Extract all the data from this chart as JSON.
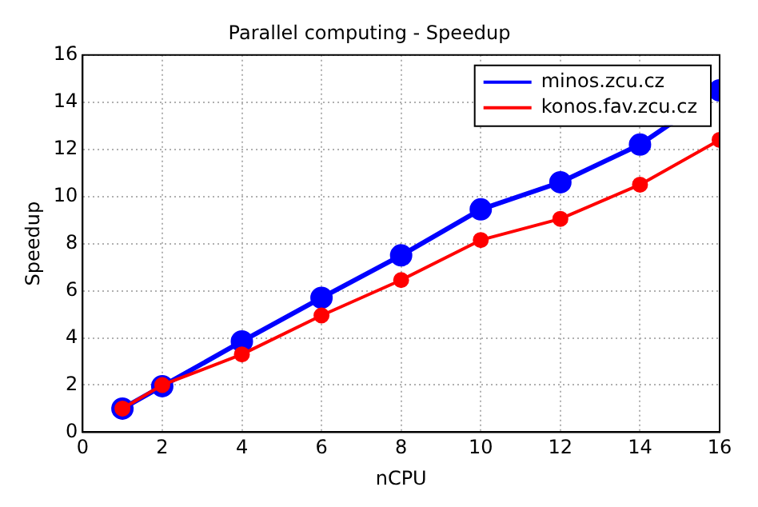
{
  "chart_data": {
    "type": "line",
    "title": "Parallel computing - Speedup",
    "xlabel": "nCPU",
    "ylabel": "Speedup",
    "x": [
      1,
      2,
      4,
      6,
      8,
      10,
      12,
      14,
      16
    ],
    "series": [
      {
        "name": "minos.zcu.cz",
        "color": "#0000ff",
        "values": [
          1,
          1.95,
          3.85,
          5.7,
          7.5,
          9.45,
          10.6,
          12.2,
          14.5
        ]
      },
      {
        "name": "konos.fav.zcu.cz",
        "color": "#ff0000",
        "values": [
          1,
          2,
          3.3,
          4.95,
          6.45,
          8.15,
          9.05,
          10.5,
          12.4
        ]
      }
    ],
    "xlim": [
      0,
      16
    ],
    "xticks": [
      0,
      2,
      4,
      6,
      8,
      10,
      12,
      14,
      16
    ],
    "ylim": [
      0,
      16
    ],
    "yticks": [
      0,
      2,
      4,
      6,
      8,
      10,
      12,
      14,
      16
    ],
    "grid": true,
    "legend": "top right",
    "marker": "circle",
    "line_style": "solid"
  }
}
